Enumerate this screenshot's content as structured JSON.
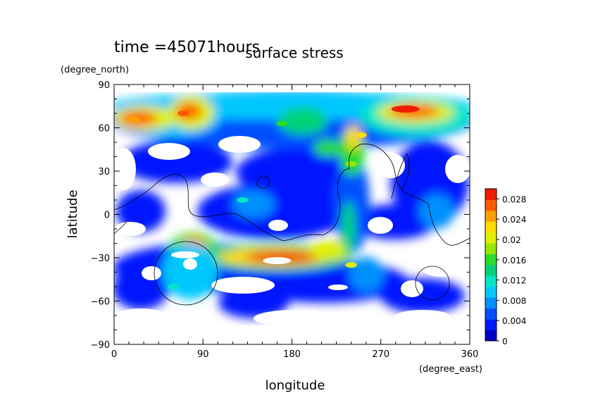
{
  "chart_data": {
    "type": "heatmap",
    "time_label": "time =45071hours",
    "title": "surface stress",
    "xlabel": "longitude",
    "ylabel": "latitude",
    "x_units": "(degree_east)",
    "y_units": "(degree_north)",
    "xlim": [
      0,
      360
    ],
    "ylim": [
      -90,
      90
    ],
    "x_ticks": [
      0,
      90,
      180,
      270,
      360
    ],
    "x_tick_labels": [
      "0",
      "90",
      "180",
      "270",
      "360"
    ],
    "y_ticks": [
      90,
      60,
      30,
      0,
      -30,
      -60,
      -90
    ],
    "y_tick_labels": [
      "90",
      "60",
      "30",
      "0",
      "−30",
      "−60",
      "−90"
    ],
    "colorbar": {
      "min": 0,
      "max": 0.03,
      "ticks": [
        0,
        0.004,
        0.008,
        0.012,
        0.016,
        0.02,
        0.024,
        0.028
      ],
      "tick_labels": [
        "0",
        "0.004",
        "0.008",
        "0.012",
        "0.016",
        "0.02",
        "0.024",
        "0.028"
      ],
      "colors": [
        "#0000c8",
        "#0019ff",
        "#0050ff",
        "#0090ff",
        "#00c8ff",
        "#00e6c8",
        "#00d278",
        "#28dc28",
        "#96e600",
        "#dcf000",
        "#ffdc00",
        "#ffa000",
        "#ff5a00",
        "#f01e00"
      ]
    },
    "features": [
      {
        "lon": 70,
        "lat": 70,
        "value": 0.026
      },
      {
        "lon": 20,
        "lat": 66,
        "value": 0.024
      },
      {
        "lon": 295,
        "lat": 73,
        "value": 0.028
      },
      {
        "lon": 250,
        "lat": 55,
        "value": 0.022
      },
      {
        "lon": 165,
        "lat": -32,
        "value": 0.03
      },
      {
        "lon": 240,
        "lat": -35,
        "value": 0.02
      },
      {
        "lon": 72,
        "lat": -28,
        "value": 0.03
      },
      {
        "lon": 170,
        "lat": 63,
        "value": 0.016
      },
      {
        "lon": 240,
        "lat": 35,
        "value": 0.018
      },
      {
        "lon": 60,
        "lat": -50,
        "value": 0.012
      },
      {
        "lon": 130,
        "lat": 10,
        "value": 0.012
      }
    ]
  }
}
